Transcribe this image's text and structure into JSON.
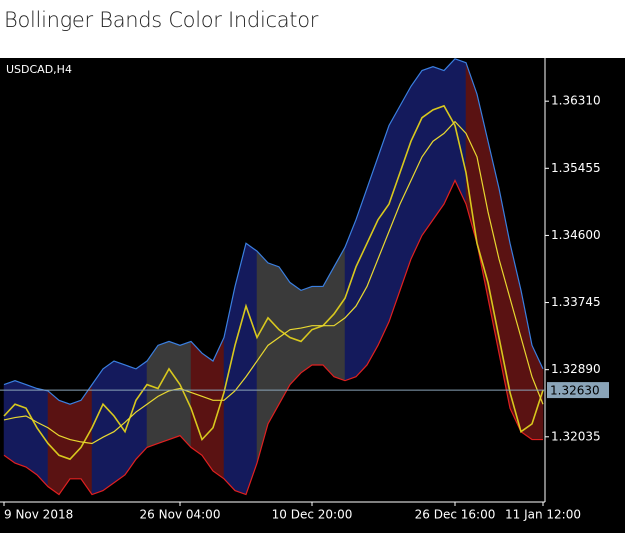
{
  "chart_data": {
    "type": "bollinger",
    "title": "Bollinger Bands Color Indicator",
    "symbol": "USDCAD,H4",
    "x": [
      "9 Nov 2018",
      null,
      null,
      null,
      null,
      null,
      null,
      null,
      null,
      null,
      null,
      null,
      null,
      null,
      null,
      null,
      "26 Nov 04:00",
      null,
      null,
      null,
      null,
      null,
      null,
      null,
      null,
      null,
      null,
      null,
      "10 Dec 20:00",
      null,
      null,
      null,
      null,
      null,
      null,
      null,
      null,
      null,
      null,
      null,
      null,
      "26 Dec 16:00",
      null,
      null,
      null,
      null,
      null,
      null,
      null,
      "11 Jan 12:00"
    ],
    "values": [
      1.323,
      1.3245,
      1.324,
      1.3215,
      1.3195,
      1.318,
      1.3175,
      1.319,
      1.3215,
      1.3245,
      1.323,
      1.321,
      1.325,
      1.327,
      1.3265,
      1.329,
      1.327,
      1.324,
      1.32,
      1.3215,
      1.326,
      1.332,
      1.337,
      1.333,
      1.3355,
      1.334,
      1.333,
      1.3325,
      1.334,
      1.3345,
      1.336,
      1.338,
      1.342,
      1.345,
      1.348,
      1.35,
      1.354,
      1.358,
      1.361,
      1.362,
      1.3625,
      1.36,
      1.354,
      1.345,
      1.34,
      1.333,
      1.326,
      1.321,
      1.322,
      1.3263
    ],
    "middle": [
      1.3225,
      1.3228,
      1.323,
      1.3222,
      1.3215,
      1.3205,
      1.32,
      1.3197,
      1.3195,
      1.3203,
      1.321,
      1.3222,
      1.3235,
      1.3245,
      1.3255,
      1.3262,
      1.3265,
      1.326,
      1.3255,
      1.325,
      1.325,
      1.3262,
      1.328,
      1.33,
      1.332,
      1.333,
      1.334,
      1.3342,
      1.3345,
      1.3345,
      1.3345,
      1.3355,
      1.337,
      1.3395,
      1.343,
      1.3465,
      1.35,
      1.353,
      1.356,
      1.358,
      1.359,
      1.3605,
      1.359,
      1.356,
      1.349,
      1.343,
      1.338,
      1.333,
      1.328,
      1.3245
    ],
    "upper": [
      1.327,
      1.3275,
      1.327,
      1.3265,
      1.3262,
      1.325,
      1.3245,
      1.325,
      1.327,
      1.329,
      1.33,
      1.3295,
      1.329,
      1.33,
      1.332,
      1.3325,
      1.332,
      1.3325,
      1.331,
      1.33,
      1.333,
      1.3395,
      1.345,
      1.344,
      1.3425,
      1.342,
      1.34,
      1.339,
      1.3395,
      1.3395,
      1.342,
      1.3445,
      1.348,
      1.352,
      1.356,
      1.36,
      1.3625,
      1.365,
      1.367,
      1.3675,
      1.367,
      1.3685,
      1.368,
      1.364,
      1.358,
      1.352,
      1.345,
      1.339,
      1.332,
      1.329
    ],
    "lower": [
      1.318,
      1.317,
      1.3165,
      1.3155,
      1.314,
      1.313,
      1.315,
      1.315,
      1.313,
      1.3135,
      1.3145,
      1.3155,
      1.3175,
      1.319,
      1.3195,
      1.32,
      1.3205,
      1.319,
      1.318,
      1.316,
      1.315,
      1.3135,
      1.313,
      1.317,
      1.322,
      1.3245,
      1.327,
      1.3285,
      1.3295,
      1.3295,
      1.328,
      1.3275,
      1.328,
      1.3295,
      1.332,
      1.335,
      1.339,
      1.343,
      1.346,
      1.348,
      1.35,
      1.353,
      1.35,
      1.345,
      1.338,
      1.331,
      1.324,
      1.321,
      1.32,
      1.32
    ],
    "band_colors": [
      "#141a5c",
      "#141a5c",
      "#141a5c",
      "#141a5c",
      "#5a1212",
      "#5a1212",
      "#5a1212",
      "#5a1212",
      "#141a5c",
      "#141a5c",
      "#141a5c",
      "#141a5c",
      "#141a5c",
      "#3a3a3a",
      "#3a3a3a",
      "#3a3a3a",
      "#3a3a3a",
      "#5a1212",
      "#5a1212",
      "#5a1212",
      "#141a5c",
      "#141a5c",
      "#141a5c",
      "#3a3a3a",
      "#3a3a3a",
      "#3a3a3a",
      "#3a3a3a",
      "#3a3a3a",
      "#3a3a3a",
      "#3a3a3a",
      "#3a3a3a",
      "#141a5c",
      "#141a5c",
      "#141a5c",
      "#141a5c",
      "#141a5c",
      "#141a5c",
      "#141a5c",
      "#141a5c",
      "#141a5c",
      "#141a5c",
      "#141a5c",
      "#5a1212",
      "#5a1212",
      "#5a1212",
      "#5a1212",
      "#5a1212",
      "#5a1212",
      "#5a1212"
    ],
    "color": "#d8c81e",
    "middle_color": "#e8d830",
    "upper_color": "#3a7fe0",
    "lower_color": "#e02020",
    "ylim": [
      1.3123,
      1.3686
    ],
    "yticks": [
      {
        "value": 1.3631,
        "label": "1.36310"
      },
      {
        "value": 1.35455,
        "label": "1.35455"
      },
      {
        "value": 1.346,
        "label": "1.34600"
      },
      {
        "value": 1.33745,
        "label": "1.33745"
      },
      {
        "value": 1.3289,
        "label": "1.32890"
      },
      {
        "value": 1.32035,
        "label": "1.32035"
      }
    ],
    "price_line": {
      "value": 1.3263,
      "label": "1.32630"
    }
  }
}
